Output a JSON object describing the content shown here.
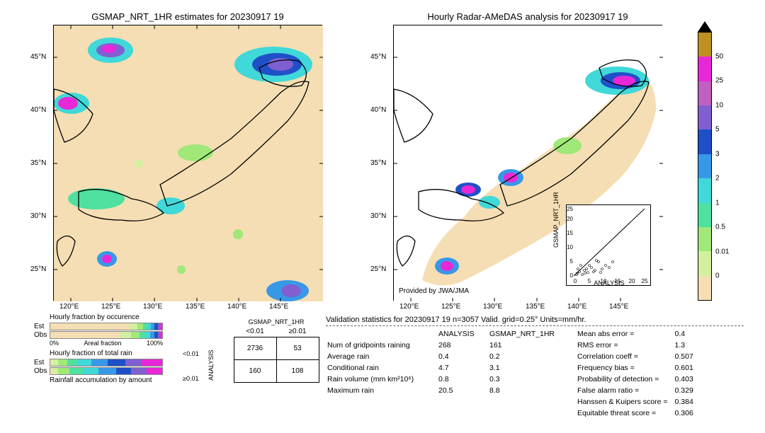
{
  "maps": {
    "left": {
      "title": "GSMAP_NRT_1HR estimates for 20230917 19",
      "x_ticks": [
        "120°E",
        "125°E",
        "130°E",
        "135°E",
        "140°E",
        "145°E"
      ],
      "y_ticks": [
        "25°N",
        "30°N",
        "35°N",
        "40°N",
        "45°N"
      ],
      "xlim": [
        118,
        150
      ],
      "ylim": [
        22,
        48
      ],
      "background_color": "#f5deb3"
    },
    "right": {
      "title": "Hourly Radar-AMeDAS analysis for 20230917 19",
      "x_ticks": [
        "120°E",
        "125°E",
        "130°E",
        "135°E",
        "140°E",
        "145°E"
      ],
      "y_ticks": [
        "25°N",
        "30°N",
        "35°N",
        "40°N",
        "45°N"
      ],
      "xlim": [
        118,
        150
      ],
      "ylim": [
        22,
        48
      ],
      "background_color": "#ffffff",
      "provider": "Provided by JWA/JMA"
    },
    "scatter_inset": {
      "xlabel": "ANALYSIS",
      "ylabel": "GSMAP_NRT_1HR",
      "xlim": [
        0,
        25
      ],
      "ylim": [
        0,
        25
      ],
      "ticks": [
        0,
        5,
        10,
        15,
        20,
        25
      ]
    }
  },
  "colorbar": {
    "levels": [
      0,
      0.01,
      0.5,
      1,
      2,
      3,
      5,
      10,
      25,
      50
    ],
    "colors": [
      "#f5deb3",
      "#d2f0a0",
      "#a0e878",
      "#50e0a0",
      "#40d8d8",
      "#3898e8",
      "#2050c8",
      "#8060d0",
      "#c060c0",
      "#e828d8",
      "#c09020"
    ],
    "arrow_color": "#000000"
  },
  "fractions": {
    "occurrence_title": "Hourly fraction by occurence",
    "total_rain_title": "Hourly fraction of total rain",
    "accumulation_title": "Rainfall accumulation by amount",
    "est_label": "Est",
    "obs_label": "Obs",
    "areal_label": "Areal fraction",
    "pct_0": "0%",
    "pct_100": "100%",
    "occurrence_est": [
      0.7,
      0.08,
      0.05,
      0.04,
      0.03,
      0.03,
      0.03,
      0.02,
      0.02
    ],
    "occurrence_obs": [
      0.62,
      0.1,
      0.08,
      0.05,
      0.04,
      0.04,
      0.03,
      0.02,
      0.02
    ],
    "total_est": [
      0.02,
      0.05,
      0.08,
      0.1,
      0.12,
      0.14,
      0.16,
      0.15,
      0.18
    ],
    "total_obs": [
      0.02,
      0.05,
      0.1,
      0.12,
      0.14,
      0.16,
      0.13,
      0.14,
      0.14
    ],
    "seg_colors": [
      "#f5deb3",
      "#d2f0a0",
      "#a0e878",
      "#50e0a0",
      "#40d8d8",
      "#3898e8",
      "#2050c8",
      "#8060d0",
      "#e828d8"
    ]
  },
  "contingency": {
    "col_header": "GSMAP_NRT_1HR",
    "row_header": "ANALYSIS",
    "col_lt": "<0.01",
    "col_ge": "≥0.01",
    "row_lt": "<0.01",
    "row_ge": "≥0.01",
    "cells": [
      [
        2736,
        53
      ],
      [
        160,
        108
      ]
    ]
  },
  "validation": {
    "title": "Validation statistics for 20230917 19  n=3057 Valid. grid=0.25°  Units=mm/hr.",
    "col1": "ANALYSIS",
    "col2": "GSMAP_NRT_1HR",
    "rows": [
      {
        "label": "Num of gridpoints raining",
        "v1": "268",
        "v2": "161"
      },
      {
        "label": "Average rain",
        "v1": "0.4",
        "v2": "0.2"
      },
      {
        "label": "Conditional rain",
        "v1": "4.7",
        "v2": "3.1"
      },
      {
        "label": "Rain volume (mm km²10⁶)",
        "v1": "0.8",
        "v2": "0.3"
      },
      {
        "label": "Maximum rain",
        "v1": "20.5",
        "v2": "8.8"
      }
    ],
    "metrics": [
      {
        "label": "Mean abs error =",
        "v": "0.4"
      },
      {
        "label": "RMS error =",
        "v": "1.3"
      },
      {
        "label": "Correlation coeff =",
        "v": "0.507"
      },
      {
        "label": "Frequency bias =",
        "v": "0.601"
      },
      {
        "label": "Probability of detection =",
        "v": "0.403"
      },
      {
        "label": "False alarm ratio =",
        "v": "0.329"
      },
      {
        "label": "Hanssen & Kuipers score =",
        "v": "0.384"
      },
      {
        "label": "Equitable threat score =",
        "v": "0.306"
      }
    ]
  }
}
